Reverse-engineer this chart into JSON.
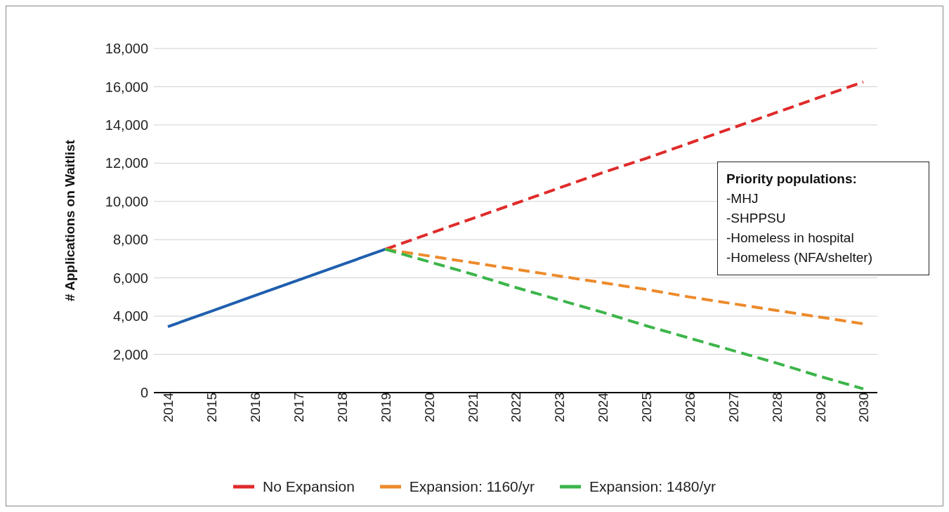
{
  "chart_data": {
    "type": "line",
    "ylabel": "# Applications on Waitlist",
    "categories": [
      "2014",
      "2015",
      "2016",
      "2017",
      "2018",
      "2019",
      "2020",
      "2021",
      "2022",
      "2023",
      "2024",
      "2025",
      "2026",
      "2027",
      "2028",
      "2029",
      "2030"
    ],
    "series": [
      {
        "color": "#1f5fae",
        "line_style": "solid",
        "values": [
          3450,
          4260,
          5070,
          5880,
          6690,
          7500,
          null,
          null,
          null,
          null,
          null,
          null,
          null,
          null,
          null,
          null,
          null
        ]
      },
      {
        "name": "No Expansion",
        "color": "#e02a2a",
        "line_style": "dashed",
        "values": [
          null,
          null,
          null,
          null,
          null,
          7500,
          8300,
          9100,
          9900,
          10700,
          11500,
          12250,
          13050,
          13850,
          14650,
          15450,
          16250
        ]
      },
      {
        "name": "Expansion: 1160/yr",
        "color": "#ed8a2a",
        "line_style": "dashed",
        "values": [
          null,
          null,
          null,
          null,
          null,
          7500,
          7150,
          6800,
          6450,
          6100,
          5750,
          5400,
          5000,
          4650,
          4300,
          3950,
          3600
        ]
      },
      {
        "name": "Expansion: 1480/yr",
        "color": "#3cb54a",
        "line_style": "dashed",
        "values": [
          null,
          null,
          null,
          null,
          null,
          7500,
          6850,
          6200,
          5500,
          4850,
          4200,
          3500,
          2850,
          2200,
          1550,
          850,
          200
        ]
      }
    ],
    "ylim": [
      0,
      18000
    ],
    "yticks": [
      {
        "value": 0,
        "label": "0"
      },
      {
        "value": 2000,
        "label": "2,000"
      },
      {
        "value": 4000,
        "label": "4,000"
      },
      {
        "value": 6000,
        "label": "6,000"
      },
      {
        "value": 8000,
        "label": "8,000"
      },
      {
        "value": 10000,
        "label": "10,000"
      },
      {
        "value": 12000,
        "label": "12,000"
      },
      {
        "value": 14000,
        "label": "14,000"
      },
      {
        "value": 16000,
        "label": "16,000"
      },
      {
        "value": 18000,
        "label": "18,000"
      }
    ],
    "grid": "y",
    "legend": "bottom",
    "marker": "none",
    "annotations": [
      "Priority populations:",
      "-MHJ",
      "-SHPPSU",
      "-Homeless in hospital",
      "-Homeless (NFA/shelter)"
    ]
  }
}
